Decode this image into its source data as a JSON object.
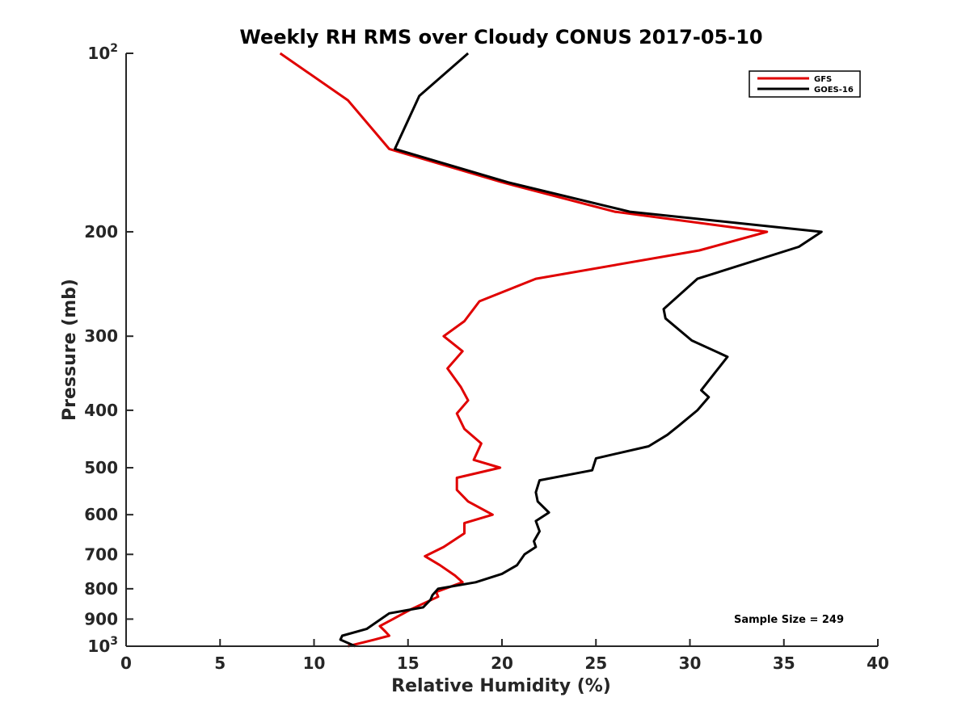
{
  "chart_data": {
    "type": "line",
    "title": "Weekly RH RMS over Cloudy CONUS 2017-05-10",
    "xlabel": "Relative Humidity (%)",
    "ylabel": "Pressure (mb)",
    "xlim": [
      0,
      40
    ],
    "ylim": [
      100,
      1000
    ],
    "y_scale": "log",
    "y_reversed": true,
    "x_ticks": [
      "0",
      "5",
      "10",
      "15",
      "20",
      "25",
      "30",
      "35",
      "40"
    ],
    "y_ticks": [
      {
        "value": 100,
        "base": "10",
        "exp": "2"
      },
      {
        "value": 200,
        "label": "200"
      },
      {
        "value": 300,
        "label": "300"
      },
      {
        "value": 400,
        "label": "400"
      },
      {
        "value": 500,
        "label": "500"
      },
      {
        "value": 600,
        "label": "600"
      },
      {
        "value": 700,
        "label": "700"
      },
      {
        "value": 800,
        "label": "800"
      },
      {
        "value": 900,
        "label": "900"
      },
      {
        "value": 1000,
        "base": "10",
        "exp": "3"
      }
    ],
    "grid": false,
    "legend_position": "top-right",
    "annotation": "Sample Size = 249",
    "series": [
      {
        "name": "GFS",
        "color": "#e00000",
        "points": [
          [
            8.2,
            100
          ],
          [
            11.8,
            120
          ],
          [
            14.0,
            145
          ],
          [
            20.0,
            165
          ],
          [
            26.0,
            185
          ],
          [
            34.1,
            200
          ],
          [
            30.5,
            215
          ],
          [
            21.8,
            240
          ],
          [
            18.8,
            262
          ],
          [
            18.0,
            283
          ],
          [
            16.9,
            300
          ],
          [
            17.9,
            318
          ],
          [
            17.1,
            340
          ],
          [
            17.8,
            365
          ],
          [
            18.2,
            385
          ],
          [
            17.6,
            405
          ],
          [
            18.0,
            430
          ],
          [
            18.9,
            455
          ],
          [
            18.5,
            485
          ],
          [
            19.9,
            500
          ],
          [
            17.6,
            520
          ],
          [
            17.6,
            545
          ],
          [
            18.2,
            570
          ],
          [
            19.5,
            600
          ],
          [
            18.0,
            620
          ],
          [
            18.0,
            645
          ],
          [
            16.9,
            680
          ],
          [
            15.9,
            705
          ],
          [
            16.7,
            730
          ],
          [
            17.5,
            760
          ],
          [
            17.9,
            780
          ],
          [
            16.5,
            810
          ],
          [
            16.6,
            825
          ],
          [
            15.2,
            865
          ],
          [
            14.2,
            900
          ],
          [
            13.5,
            925
          ],
          [
            13.8,
            945
          ],
          [
            14.0,
            960
          ],
          [
            13.2,
            975
          ],
          [
            11.8,
            1000
          ]
        ]
      },
      {
        "name": "GOES-16",
        "color": "#000000",
        "points": [
          [
            18.2,
            100
          ],
          [
            15.6,
            118
          ],
          [
            14.3,
            145
          ],
          [
            20.3,
            165
          ],
          [
            26.8,
            185
          ],
          [
            37.0,
            200
          ],
          [
            35.8,
            212
          ],
          [
            30.4,
            240
          ],
          [
            28.6,
            270
          ],
          [
            28.7,
            280
          ],
          [
            30.1,
            305
          ],
          [
            32.0,
            325
          ],
          [
            31.2,
            350
          ],
          [
            30.6,
            370
          ],
          [
            31.0,
            380
          ],
          [
            30.4,
            400
          ],
          [
            29.4,
            425
          ],
          [
            28.8,
            440
          ],
          [
            27.8,
            460
          ],
          [
            25.0,
            482
          ],
          [
            24.8,
            505
          ],
          [
            22.0,
            525
          ],
          [
            21.8,
            550
          ],
          [
            21.9,
            570
          ],
          [
            22.5,
            595
          ],
          [
            21.8,
            615
          ],
          [
            22.0,
            640
          ],
          [
            21.7,
            665
          ],
          [
            21.8,
            680
          ],
          [
            21.2,
            700
          ],
          [
            20.8,
            730
          ],
          [
            20.0,
            755
          ],
          [
            18.6,
            780
          ],
          [
            16.6,
            800
          ],
          [
            16.3,
            820
          ],
          [
            16.2,
            835
          ],
          [
            15.8,
            860
          ],
          [
            14.0,
            880
          ],
          [
            12.8,
            935
          ],
          [
            11.5,
            960
          ],
          [
            11.4,
            975
          ],
          [
            12.2,
            1000
          ]
        ]
      }
    ]
  }
}
